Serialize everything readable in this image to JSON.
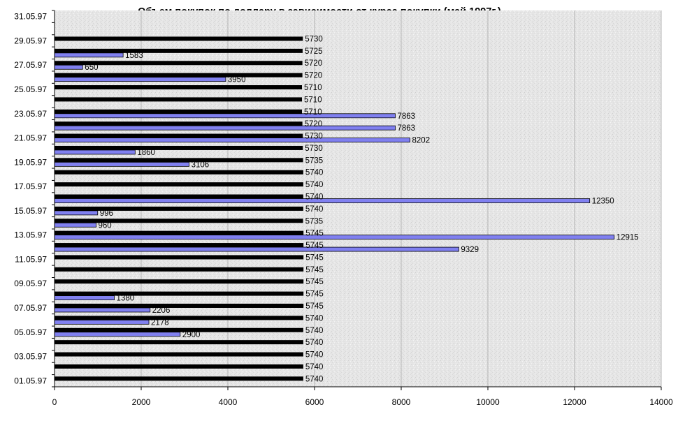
{
  "chart_data": {
    "type": "bar",
    "orientation": "horizontal",
    "title": "Объем покупок по доллару в зависимости от курса покупки (май 1997г.)",
    "xlim": [
      0,
      14000
    ],
    "x_ticks": [
      "0",
      "2000",
      "4000",
      "6000",
      "8000",
      "10000",
      "12000",
      "14000"
    ],
    "categories": [
      "01.05.97",
      "02.05.97",
      "03.05.97",
      "04.05.97",
      "05.05.97",
      "06.05.97",
      "07.05.97",
      "08.05.97",
      "09.05.97",
      "10.05.97",
      "11.05.97",
      "12.05.97",
      "13.05.97",
      "14.05.97",
      "15.05.97",
      "16.05.97",
      "17.05.97",
      "18.05.97",
      "19.05.97",
      "20.05.97",
      "21.05.97",
      "22.05.97",
      "23.05.97",
      "24.05.97",
      "25.05.97",
      "26.05.97",
      "27.05.97",
      "28.05.97",
      "29.05.97",
      "30.05.97",
      "31.05.97"
    ],
    "category_labels_shown": [
      "01.05.97",
      "03.05.97",
      "05.05.97",
      "07.05.97",
      "09.05.97",
      "11.05.97",
      "13.05.97",
      "15.05.97",
      "17.05.97",
      "19.05.97",
      "21.05.97",
      "23.05.97",
      "25.05.97",
      "27.05.97",
      "29.05.97",
      "31.05.97"
    ],
    "series": [
      {
        "color": "#000000",
        "values": [
          5740,
          5740,
          5740,
          5740,
          5740,
          5740,
          5745,
          5745,
          5745,
          5745,
          5745,
          5745,
          5745,
          5735,
          5740,
          5740,
          5740,
          5740,
          5735,
          5730,
          5730,
          5720,
          5710,
          5710,
          5710,
          5720,
          5720,
          5725,
          5730,
          null,
          null
        ]
      },
      {
        "color": "#8080f0",
        "values": [
          null,
          null,
          null,
          null,
          2900,
          2178,
          2206,
          1380,
          null,
          null,
          null,
          9329,
          12915,
          960,
          996,
          12350,
          null,
          null,
          3106,
          1860,
          8202,
          7863,
          7863,
          null,
          null,
          3950,
          650,
          1583,
          null,
          null,
          null
        ]
      }
    ],
    "grid": true,
    "legend": "none"
  }
}
